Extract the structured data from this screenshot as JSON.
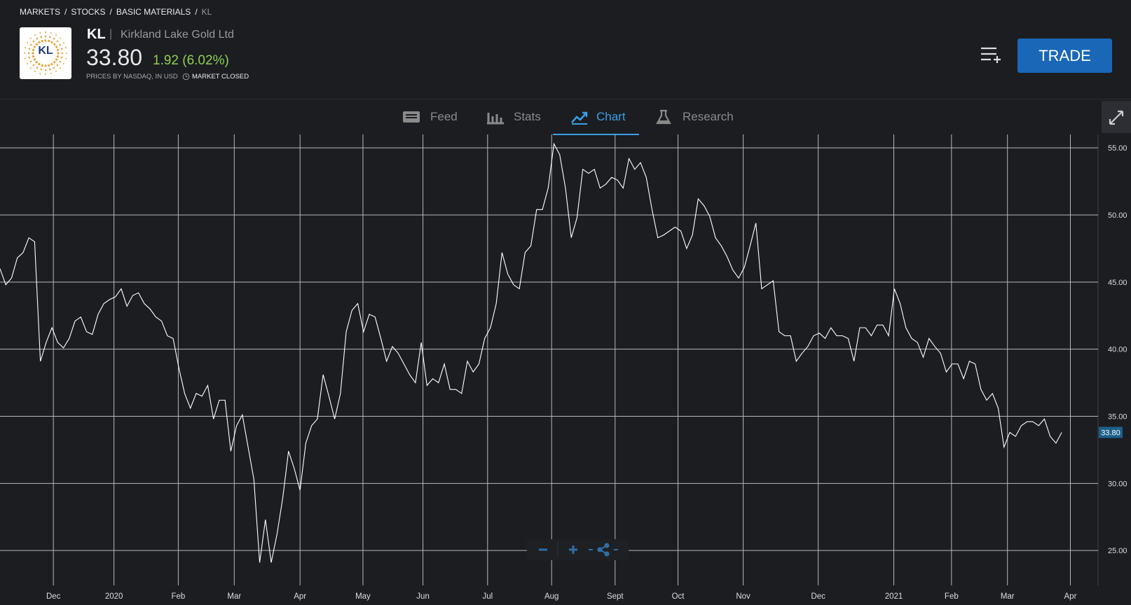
{
  "header": {
    "breadcrumb": [
      "MARKETS",
      "STOCKS",
      "BASIC MATERIALS",
      "KL"
    ],
    "breadcrumb_separator": "/",
    "logo_text": "KL",
    "symbol": "KL",
    "name_separator": "|",
    "name": "Kirkland Lake Gold Ltd",
    "price": "33.80",
    "change": "1.92 (6.02%)",
    "source": "PRICES BY NASDAQ, IN USD",
    "market_status": "MARKET CLOSED",
    "trade_button": "TRADE"
  },
  "tabs": {
    "items": [
      "Feed",
      "Stats",
      "Chart",
      "Research"
    ],
    "active": 2
  },
  "chart_data": {
    "type": "line",
    "color": "#ffffff",
    "grid": true,
    "values": [
      46.0,
      44.8,
      45.3,
      46.8,
      47.2,
      48.3,
      48.0,
      39.1,
      40.5,
      41.6,
      40.5,
      40.1,
      40.8,
      42.1,
      42.4,
      41.3,
      41.1,
      42.6,
      43.4,
      43.7,
      43.9,
      44.5,
      43.2,
      44.0,
      44.2,
      43.4,
      43.0,
      42.4,
      42.1,
      41.0,
      40.8,
      38.6,
      36.7,
      35.6,
      36.7,
      36.5,
      37.3,
      34.8,
      36.2,
      36.2,
      32.4,
      34.3,
      35.1,
      32.7,
      30.3,
      24.1,
      27.3,
      24.1,
      26.2,
      28.9,
      32.4,
      31.1,
      29.5,
      33.0,
      34.3,
      34.8,
      38.1,
      36.5,
      34.8,
      36.7,
      41.3,
      42.9,
      43.4,
      41.3,
      42.6,
      42.4,
      40.8,
      39.1,
      40.2,
      39.7,
      38.9,
      38.1,
      37.5,
      40.5,
      37.3,
      37.8,
      37.5,
      38.9,
      37.0,
      37.0,
      36.7,
      39.1,
      38.3,
      38.9,
      40.8,
      41.6,
      43.4,
      47.2,
      45.6,
      44.8,
      44.5,
      47.2,
      47.7,
      50.4,
      50.4,
      52.0,
      55.3,
      54.5,
      52.0,
      48.3,
      49.8,
      53.4,
      53.1,
      53.4,
      52.0,
      52.3,
      52.8,
      52.6,
      52.0,
      54.2,
      53.4,
      53.9,
      52.8,
      50.4,
      48.3,
      48.5,
      48.8,
      49.1,
      48.8,
      47.5,
      48.5,
      51.2,
      50.7,
      49.9,
      48.3,
      47.7,
      46.9,
      45.9,
      45.3,
      46.1,
      47.7,
      49.4,
      44.5,
      44.8,
      45.1,
      41.3,
      41.0,
      41.0,
      39.1,
      39.7,
      40.2,
      41.0,
      41.2,
      40.8,
      41.6,
      41.0,
      41.0,
      40.8,
      39.1,
      41.6,
      41.6,
      41.0,
      41.8,
      41.8,
      41.0,
      44.5,
      43.4,
      41.6,
      40.8,
      40.5,
      39.4,
      40.8,
      40.2,
      39.7,
      38.3,
      38.9,
      38.9,
      37.8,
      39.1,
      38.9,
      37.0,
      36.2,
      36.7,
      35.6,
      32.7,
      33.8,
      33.5,
      34.3,
      34.6,
      34.6,
      34.3,
      34.8,
      33.5,
      33.0,
      33.8
    ],
    "xlim": [
      0,
      190.3
    ],
    "xticks": [
      {
        "value": 9.25,
        "label": "Dec"
      },
      {
        "value": 19.75,
        "label": "2020"
      },
      {
        "value": 30.9,
        "label": "Feb"
      },
      {
        "value": 40.6,
        "label": "Mar"
      },
      {
        "value": 52,
        "label": "Apr"
      },
      {
        "value": 62.9,
        "label": "May"
      },
      {
        "value": 73.3,
        "label": "Jun"
      },
      {
        "value": 84.5,
        "label": "Jul"
      },
      {
        "value": 95.6,
        "label": "Aug"
      },
      {
        "value": 106.6,
        "label": "Sept"
      },
      {
        "value": 117.5,
        "label": "Oct"
      },
      {
        "value": 128.8,
        "label": "Nov"
      },
      {
        "value": 141.8,
        "label": "Dec"
      },
      {
        "value": 154.9,
        "label": "2021"
      },
      {
        "value": 164.9,
        "label": "Feb"
      },
      {
        "value": 174.6,
        "label": "Mar"
      },
      {
        "value": 185.5,
        "label": "Apr"
      }
    ],
    "ylim": [
      22.4,
      56.0
    ],
    "yticks": [
      {
        "value": 25,
        "label": "25.00"
      },
      {
        "value": 30,
        "label": "30.00"
      },
      {
        "value": 35,
        "label": "35.00"
      },
      {
        "value": 40,
        "label": "40.00"
      },
      {
        "value": 45,
        "label": "45.00"
      },
      {
        "value": 50,
        "label": "50.00"
      },
      {
        "value": 55,
        "label": "55.00"
      }
    ]
  }
}
